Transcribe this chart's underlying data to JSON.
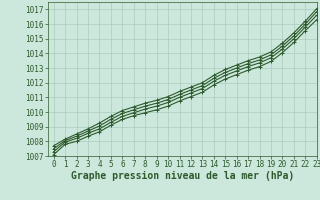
{
  "title": "Graphe pression niveau de la mer (hPa)",
  "bg_color": "#cce8dc",
  "grid_color": "#aaccbb",
  "line_color": "#2d5a2d",
  "xlim": [
    -0.5,
    23
  ],
  "ylim": [
    1007,
    1017.5
  ],
  "xticks": [
    0,
    1,
    2,
    3,
    4,
    5,
    6,
    7,
    8,
    9,
    10,
    11,
    12,
    13,
    14,
    15,
    16,
    17,
    18,
    19,
    20,
    21,
    22,
    23
  ],
  "yticks": [
    1007,
    1008,
    1009,
    1010,
    1011,
    1012,
    1013,
    1014,
    1015,
    1016,
    1017
  ],
  "lines": [
    [
      1007.1,
      1007.8,
      1008.0,
      1008.35,
      1008.65,
      1009.1,
      1009.5,
      1009.75,
      1009.95,
      1010.15,
      1010.4,
      1010.75,
      1011.05,
      1011.35,
      1011.85,
      1012.25,
      1012.55,
      1012.85,
      1013.1,
      1013.45,
      1014.05,
      1014.75,
      1015.55,
      1016.3
    ],
    [
      1007.3,
      1007.95,
      1008.2,
      1008.55,
      1008.85,
      1009.3,
      1009.7,
      1009.95,
      1010.2,
      1010.4,
      1010.65,
      1011.0,
      1011.3,
      1011.6,
      1012.1,
      1012.5,
      1012.8,
      1013.1,
      1013.35,
      1013.7,
      1014.3,
      1015.0,
      1015.8,
      1016.6
    ],
    [
      1007.5,
      1008.05,
      1008.35,
      1008.7,
      1009.05,
      1009.5,
      1009.9,
      1010.15,
      1010.4,
      1010.6,
      1010.85,
      1011.2,
      1011.5,
      1011.8,
      1012.3,
      1012.7,
      1013.0,
      1013.3,
      1013.55,
      1013.9,
      1014.5,
      1015.2,
      1016.0,
      1016.85
    ],
    [
      1007.7,
      1008.15,
      1008.5,
      1008.85,
      1009.25,
      1009.7,
      1010.1,
      1010.35,
      1010.6,
      1010.8,
      1011.05,
      1011.4,
      1011.7,
      1012.0,
      1012.5,
      1012.9,
      1013.2,
      1013.5,
      1013.75,
      1014.1,
      1014.7,
      1015.4,
      1016.2,
      1017.05
    ]
  ],
  "marker": "+",
  "marker_size": 3,
  "linewidth": 0.8,
  "title_fontsize": 7,
  "tick_fontsize": 5.5
}
